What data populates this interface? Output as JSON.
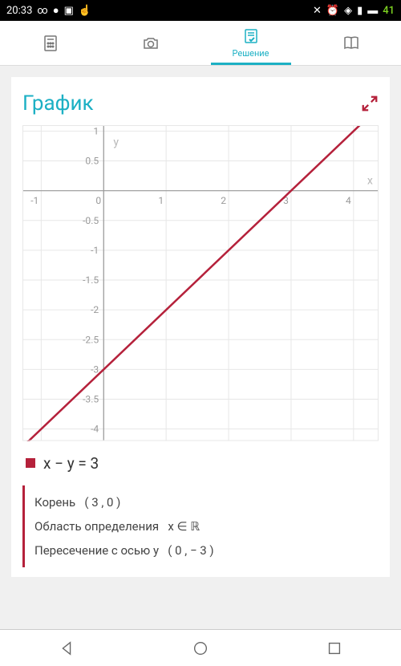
{
  "status": {
    "time": "20:33",
    "icons_left": [
      "∞",
      "💬",
      "🖼",
      "👆"
    ],
    "icons_right": [
      "🔕",
      "⏰",
      "📶",
      "🔋"
    ],
    "battery": "41"
  },
  "tabs": {
    "items": [
      {
        "name": "calculator",
        "label": ""
      },
      {
        "name": "camera",
        "label": ""
      },
      {
        "name": "solution",
        "label": "Решение",
        "active": true
      },
      {
        "name": "book",
        "label": ""
      }
    ]
  },
  "card": {
    "title": "График"
  },
  "chart": {
    "type": "line",
    "xlim": [
      -1.3,
      4.4
    ],
    "ylim": [
      -4.2,
      1.1
    ],
    "xtick_step": 1,
    "ytick_step_major": 1,
    "ytick_step_minor": 0.5,
    "x_axis_label": "x",
    "y_axis_label": "y",
    "background": "#ffffff",
    "grid_color": "#e7e7e7",
    "axis_color": "#999999",
    "tick_label_color": "#9a9a9a",
    "tick_fontsize": 12,
    "axis_label_color": "#b8b8b8",
    "axis_label_fontsize": 14,
    "line_color": "#b5213b",
    "line_width": 2.5,
    "line_points": [
      [
        -1.3,
        -4.3
      ],
      [
        4.4,
        1.4
      ]
    ]
  },
  "equation": {
    "text": "x − y = 3",
    "marker_color": "#b5213b"
  },
  "info": {
    "root_label": "Корень",
    "root_value": "( 3 , 0 )",
    "domain_label": "Область определения",
    "domain_value": "x ∈ ℝ",
    "yint_label": "Пересечение с осью y",
    "yint_value": "( 0 , − 3 )"
  },
  "nav": {
    "back": "back-icon",
    "home": "home-icon",
    "recent": "recent-icon"
  }
}
